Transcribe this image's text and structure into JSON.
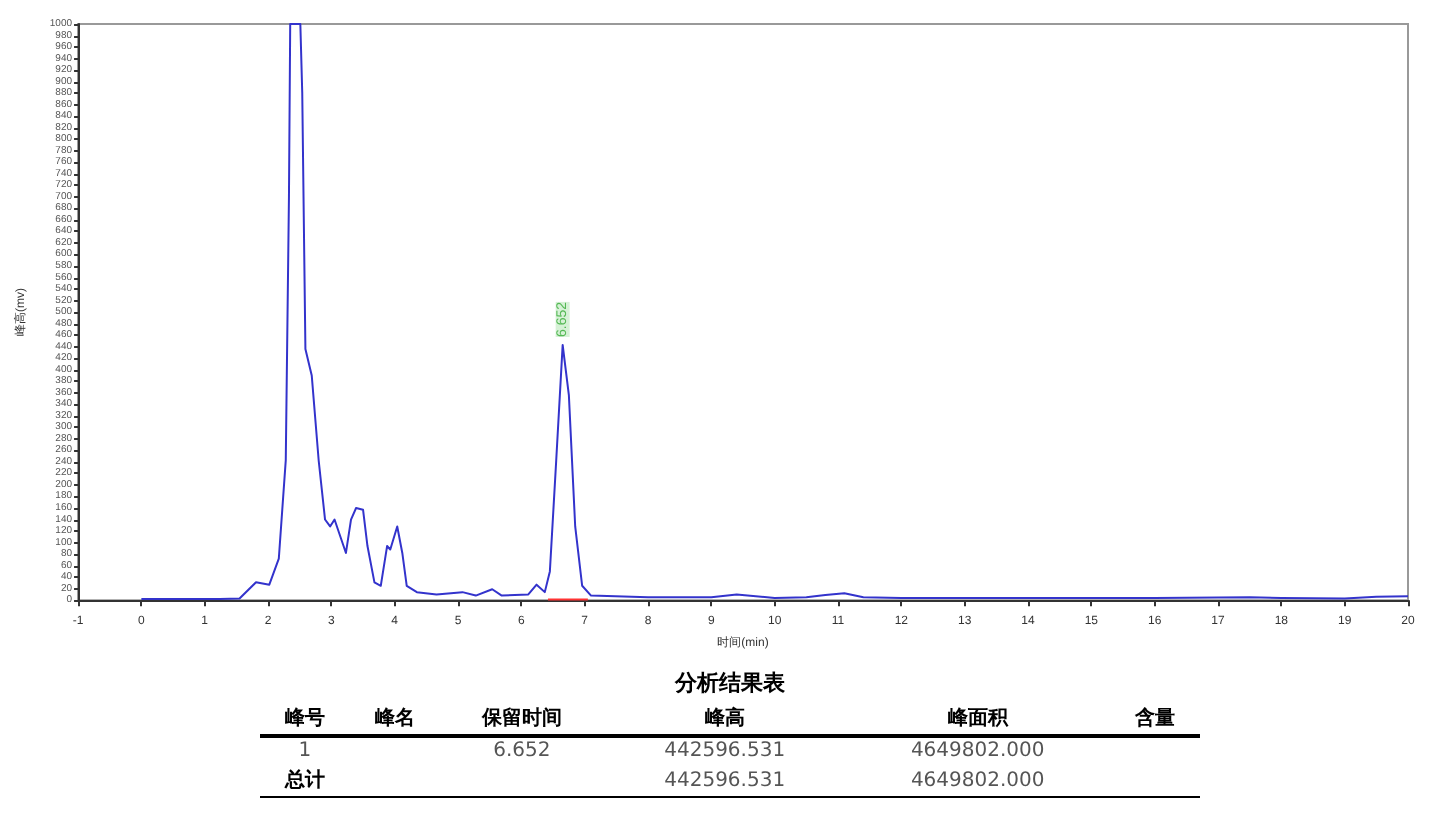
{
  "chart_data": [
    {
      "type": "line",
      "xlabel": "时间(min)",
      "ylabel": "峰高(mv)",
      "xlim": [
        -1,
        20
      ],
      "ylim": [
        0,
        1000
      ],
      "xticks": [
        -1,
        0,
        1,
        2,
        3,
        4,
        5,
        6,
        7,
        8,
        9,
        10,
        11,
        12,
        13,
        14,
        15,
        16,
        17,
        18,
        19,
        20
      ],
      "yticks": [
        0,
        20,
        40,
        60,
        80,
        100,
        120,
        140,
        160,
        180,
        200,
        220,
        240,
        260,
        280,
        300,
        320,
        340,
        360,
        380,
        400,
        420,
        440,
        460,
        480,
        500,
        520,
        540,
        560,
        580,
        600,
        620,
        640,
        660,
        680,
        700,
        720,
        740,
        760,
        780,
        800,
        820,
        840,
        860,
        880,
        900,
        920,
        940,
        960,
        980,
        1000
      ],
      "grid": false,
      "marker": "none",
      "line_style": "solid",
      "annotations": [
        {
          "text": "6.652",
          "x": 6.652,
          "y": 443
        }
      ],
      "series": [
        {
          "color": "#3333cc",
          "x": [
            0,
            1.24,
            1.55,
            1.81,
            2.02,
            2.17,
            2.28,
            2.33,
            2.35,
            2.51,
            2.54,
            2.59,
            2.69,
            2.8,
            2.9,
            2.98,
            3.05,
            3.14,
            3.23,
            3.31,
            3.39,
            3.5,
            3.57,
            3.68,
            3.78,
            3.88,
            3.93,
            4.04,
            4.12,
            4.19,
            4.35,
            4.66,
            5.07,
            5.28,
            5.54,
            5.69,
            6.11,
            6.24,
            6.37,
            6.45,
            6.55,
            6.652,
            6.75,
            6.85,
            6.96,
            7.1,
            8,
            9,
            9.4,
            10,
            10.5,
            10.8,
            11.1,
            11.4,
            12,
            14,
            16,
            17.5,
            18,
            19,
            19.5,
            20
          ],
          "values": [
            2,
            2,
            3,
            31,
            27,
            72,
            243,
            698,
            1000,
            1000,
            881,
            436,
            390,
            242,
            140,
            128,
            140,
            111,
            82,
            140,
            160,
            157,
            94,
            31,
            25,
            94,
            88,
            128,
            82,
            25,
            14,
            10,
            14,
            8,
            19,
            8,
            10,
            27,
            14,
            50,
            242,
            443,
            356,
            128,
            25,
            8,
            5,
            5,
            10,
            4,
            5,
            9,
            12,
            5,
            4,
            4,
            4,
            5,
            4,
            3,
            6,
            7
          ]
        },
        {
          "color": "#ff3333",
          "x": [
            6.42,
            7.05
          ],
          "values": [
            1,
            1
          ]
        }
      ]
    },
    {
      "type": "other",
      "title": "分析结果表",
      "ylabel": "峰号",
      "categories": [
        "峰名",
        "保留时间",
        "峰高",
        "峰面积",
        "含量"
      ],
      "y_categories": [
        "1",
        "总计"
      ],
      "cell_labels": [
        [
          null,
          "6.652",
          "442596.531",
          "4649802.000",
          null
        ],
        [
          null,
          null,
          "442596.531",
          "4649802.000",
          null
        ]
      ]
    }
  ]
}
